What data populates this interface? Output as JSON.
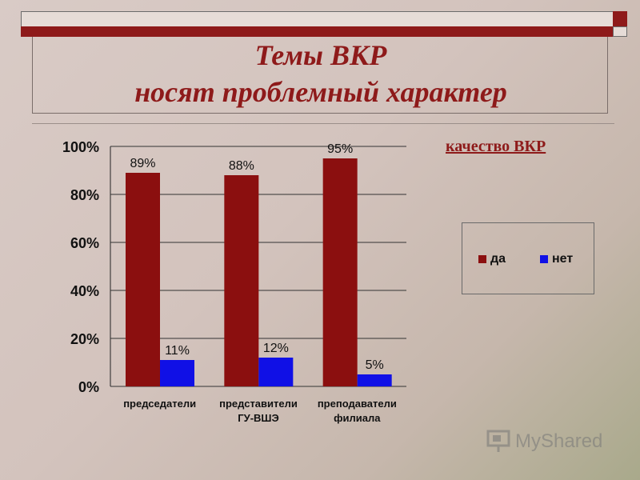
{
  "slide": {
    "title_line1": "Темы ВКР",
    "title_line2": "носят проблемный характер",
    "legend_title": "качество ВКР",
    "watermark": "MyShared"
  },
  "colors": {
    "accent": "#8e1a1a",
    "yes": "#8b0f0f",
    "no": "#1010e6"
  },
  "chart_data": {
    "type": "bar",
    "categories": [
      [
        "председатели"
      ],
      [
        "представители",
        "ГУ-ВШЭ"
      ],
      [
        "преподаватели",
        "филиала"
      ]
    ],
    "series": [
      {
        "name": "да",
        "values": [
          89,
          88,
          95
        ],
        "labels": [
          "89%",
          "88%",
          "95%"
        ]
      },
      {
        "name": "нет",
        "values": [
          11,
          12,
          5
        ],
        "labels": [
          "11%",
          "12%",
          "5%"
        ]
      }
    ],
    "ylim": [
      0,
      100
    ],
    "yticks": [
      0,
      20,
      40,
      60,
      80,
      100
    ],
    "ytick_labels": [
      "0%",
      "20%",
      "40%",
      "60%",
      "80%",
      "100%"
    ],
    "grid": true,
    "legend_position": "right"
  }
}
